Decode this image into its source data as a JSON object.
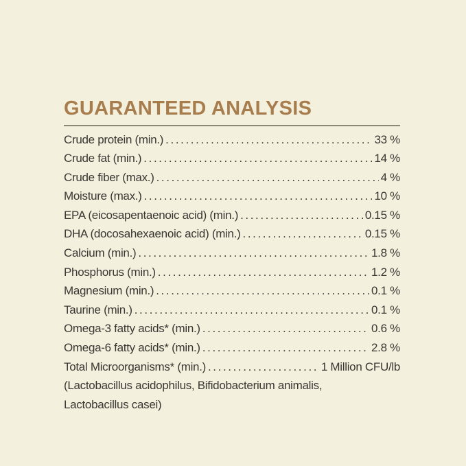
{
  "title": "GUARANTEED ANALYSIS",
  "rows": [
    {
      "label": "Crude protein (min.)",
      "value": "33 %"
    },
    {
      "label": "Crude fat (min.)",
      "value": "14 %"
    },
    {
      "label": "Crude fiber (max.)",
      "value": "4 %"
    },
    {
      "label": "Moisture (max.)",
      "value": "10 %"
    },
    {
      "label": "EPA (eicosapentaenoic acid) (min.)",
      "value": "0.15 %"
    },
    {
      "label": "DHA (docosahexaenoic acid) (min.)",
      "value": "0.15 %"
    },
    {
      "label": "Calcium (min.)",
      "value": "1.8 %"
    },
    {
      "label": "Phosphorus (min.)",
      "value": "1.2 %"
    },
    {
      "label": "Magnesium (min.)",
      "value": "0.1 %"
    },
    {
      "label": "Taurine (min.)",
      "value": "0.1 %"
    },
    {
      "label": "Omega-3 fatty acids* (min.)",
      "value": "0.6 %"
    },
    {
      "label": "Omega-6 fatty acids* (min.)",
      "value": "2.8 %"
    },
    {
      "label": "Total Microorganisms* (min.)",
      "value": "1 Million CFU/lb"
    }
  ],
  "note_lines": [
    "(Lactobacillus acidophilus, Bifidobacterium animalis,",
    "Lactobacillus casei)"
  ]
}
